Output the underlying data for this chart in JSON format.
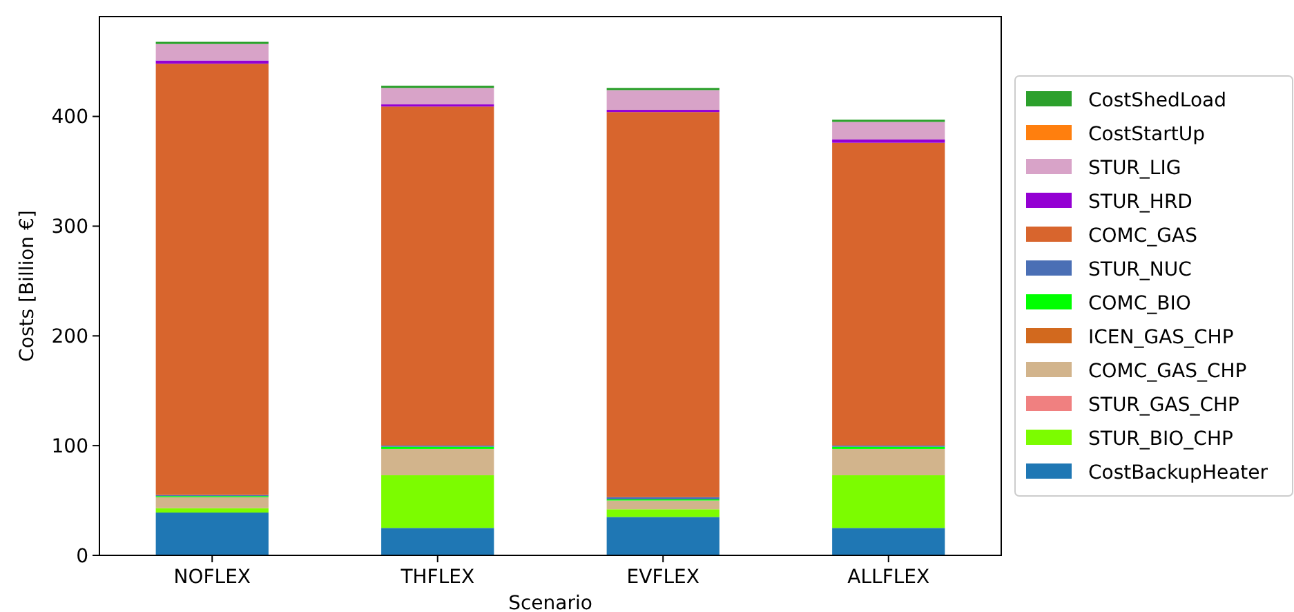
{
  "chart_data": {
    "type": "bar",
    "stacked": true,
    "xlabel": "Scenario",
    "ylabel": "Costs [Billion €]",
    "categories": [
      "NOFLEX",
      "THFLEX",
      "EVFLEX",
      "ALLFLEX"
    ],
    "ylim": [
      0,
      491
    ],
    "yticks": [
      0,
      100,
      200,
      300,
      400
    ],
    "grid": false,
    "legend": "right",
    "series": [
      {
        "name": "CostBackupHeater",
        "color": "#1f77b4",
        "values": [
          39,
          25,
          35,
          25
        ]
      },
      {
        "name": "STUR_BIO_CHP",
        "color": "#7cfc00",
        "values": [
          4,
          48,
          7,
          48
        ]
      },
      {
        "name": "STUR_GAS_CHP",
        "color": "#f08080",
        "values": [
          0,
          0,
          0,
          0
        ]
      },
      {
        "name": "COMC_GAS_CHP",
        "color": "#d2b48c",
        "values": [
          10,
          24,
          8,
          24
        ]
      },
      {
        "name": "ICEN_GAS_CHP",
        "color": "#d2691e",
        "values": [
          0,
          0,
          0,
          0
        ]
      },
      {
        "name": "COMC_BIO",
        "color": "#00ff00",
        "values": [
          1,
          2,
          1,
          2
        ]
      },
      {
        "name": "STUR_NUC",
        "color": "#4a6fb5",
        "values": [
          1,
          1,
          2,
          1
        ]
      },
      {
        "name": "COMC_GAS",
        "color": "#d8652d",
        "values": [
          393,
          309,
          351,
          276
        ]
      },
      {
        "name": "STUR_HRD",
        "color": "#9400d3",
        "values": [
          3,
          2,
          2,
          3
        ]
      },
      {
        "name": "STUR_LIG",
        "color": "#d8a3c8",
        "values": [
          15,
          15,
          18,
          16
        ]
      },
      {
        "name": "CostStartUp",
        "color": "#ff7f0e",
        "values": [
          0,
          0,
          0,
          0
        ]
      },
      {
        "name": "CostShedLoad",
        "color": "#2ca02c",
        "values": [
          2,
          2,
          2,
          2
        ]
      }
    ]
  }
}
